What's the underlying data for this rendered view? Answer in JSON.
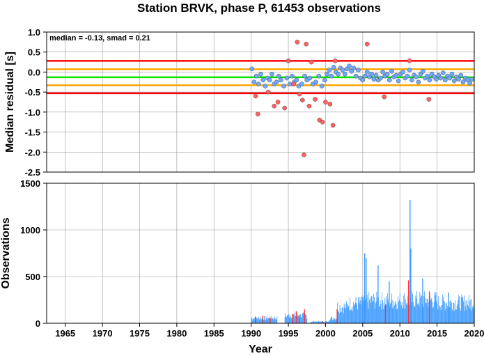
{
  "chart_data": [
    {
      "type": "scatter",
      "title": "Station BRVK, phase P, 61453 observations",
      "annotation": "median = -0.13, smad = 0.21",
      "xlabel": "",
      "ylabel": "Median residual [s]",
      "xlim": [
        1962.5,
        2020
      ],
      "ylim": [
        -2.5,
        1.0
      ],
      "y_ticks": [
        "1.0",
        "0.5",
        "0.0",
        "-0.5",
        "-1.0",
        "-1.5",
        "-2.0",
        "-2.5"
      ],
      "y_tick_values": [
        1.0,
        0.5,
        0.0,
        -0.5,
        -1.0,
        -1.5,
        -2.0,
        -2.5
      ],
      "grid": true,
      "reference_lines": [
        {
          "value": 0.28,
          "color": "#ff0000"
        },
        {
          "value": 0.07,
          "color": "#ffa500"
        },
        {
          "value": -0.13,
          "color": "#00e000"
        },
        {
          "value": -0.33,
          "color": "#ffa500"
        },
        {
          "value": -0.53,
          "color": "#ff0000"
        }
      ],
      "series": [
        {
          "color": "#6fa8ff",
          "x": [
            1990.1,
            1990.4,
            1990.7,
            1991.0,
            1991.3,
            1991.6,
            1991.9,
            1992.2,
            1992.5,
            1992.8,
            1993.1,
            1993.4,
            1993.7,
            1994.0,
            1994.4,
            1994.8,
            1995.2,
            1995.5,
            1995.8,
            1996.1,
            1996.4,
            1996.8,
            1997.2,
            1997.5,
            1997.9,
            1998.3,
            1998.7,
            1999.1,
            1999.5,
            1999.9,
            2000.2,
            2000.5,
            2000.8,
            2001.1,
            2001.4,
            2001.7,
            2002.0,
            2002.3,
            2002.6,
            2002.9,
            2003.2,
            2003.5,
            2003.8,
            2004.1,
            2004.4,
            2004.7,
            2005.0,
            2005.3,
            2005.6,
            2005.9,
            2006.2,
            2006.5,
            2006.8,
            2007.1,
            2007.4,
            2007.7,
            2008.0,
            2008.3,
            2008.6,
            2008.9,
            2009.2,
            2009.5,
            2009.8,
            2010.1,
            2010.4,
            2010.7,
            2011.0,
            2011.3,
            2011.6,
            2011.9,
            2012.2,
            2012.5,
            2012.8,
            2013.1,
            2013.4,
            2013.7,
            2014.0,
            2014.3,
            2014.6,
            2014.9,
            2015.2,
            2015.5,
            2015.8,
            2016.1,
            2016.4,
            2016.7,
            2017.0,
            2017.3,
            2017.6,
            2017.9,
            2018.2,
            2018.5,
            2018.8,
            2019.1,
            2019.4,
            2019.7
          ],
          "values": [
            0.08,
            -0.25,
            -0.1,
            -0.3,
            -0.05,
            -0.2,
            -0.35,
            -0.15,
            -0.2,
            -0.05,
            -0.3,
            -0.25,
            -0.1,
            -0.2,
            -0.35,
            -0.15,
            -0.3,
            -0.1,
            -0.25,
            -0.2,
            -0.35,
            -0.3,
            -0.1,
            -0.2,
            -0.15,
            -0.3,
            -0.25,
            -0.1,
            -0.35,
            -0.2,
            -0.05,
            0.05,
            -0.1,
            0.12,
            0.0,
            -0.05,
            0.1,
            0.05,
            -0.05,
            0.08,
            0.15,
            0.02,
            0.1,
            -0.1,
            0.05,
            -0.15,
            -0.2,
            -0.1,
            0.0,
            -0.12,
            -0.05,
            -0.18,
            -0.08,
            -0.2,
            -0.15,
            0.0,
            -0.1,
            -0.05,
            -0.2,
            0.02,
            -0.12,
            -0.08,
            -0.22,
            -0.05,
            0.0,
            -0.15,
            -0.1,
            0.05,
            -0.2,
            -0.08,
            -0.12,
            -0.25,
            -0.05,
            0.02,
            -0.15,
            -0.1,
            -0.2,
            -0.05,
            -0.12,
            -0.18,
            -0.08,
            -0.15,
            -0.02,
            -0.2,
            -0.1,
            -0.15,
            -0.05,
            -0.22,
            -0.12,
            -0.18,
            -0.08,
            -0.25,
            -0.15,
            -0.2,
            -0.28,
            -0.18
          ]
        },
        {
          "color": "#ff6060",
          "x": [
            1990.6,
            1990.9,
            1992.3,
            1993.1,
            1993.6,
            1994.5,
            1995.0,
            1995.7,
            1996.2,
            1996.5,
            1996.9,
            1997.1,
            1997.4,
            1997.8,
            1998.1,
            1998.6,
            1999.2,
            1999.6,
            2000.0,
            2000.6,
            2001.0,
            2001.3,
            2005.6,
            2007.9,
            2011.3,
            2013.9
          ],
          "values": [
            -0.6,
            -1.05,
            -0.5,
            -0.85,
            -0.75,
            -0.9,
            0.28,
            -0.3,
            0.75,
            -0.55,
            -0.7,
            -2.07,
            0.7,
            -0.85,
            0.25,
            -0.68,
            -1.2,
            -1.25,
            -0.75,
            -0.8,
            -1.33,
            0.28,
            0.7,
            -0.62,
            0.28,
            -0.68
          ]
        }
      ]
    },
    {
      "type": "bar",
      "title": "",
      "xlabel": "Year",
      "ylabel": "Observations",
      "xlim": [
        1962.5,
        2020
      ],
      "ylim": [
        0,
        1500
      ],
      "y_ticks": [
        "1500",
        "1000",
        "500",
        "0"
      ],
      "y_tick_values": [
        1500,
        1000,
        500,
        0
      ],
      "x_ticks": [
        "1965",
        "1970",
        "1975",
        "1980",
        "1985",
        "1990",
        "1995",
        "2000",
        "2005",
        "2010",
        "2015",
        "2020"
      ],
      "x_tick_values": [
        1965,
        1970,
        1975,
        1980,
        1985,
        1990,
        1995,
        2000,
        2005,
        2010,
        2015,
        2020
      ],
      "grid": true,
      "series": [
        {
          "color": "#3f9cff",
          "segments": [
            {
              "from": 1990.0,
              "to": 1993.5,
              "level": 60
            },
            {
              "from": 1994.5,
              "to": 1997.5,
              "level": 90
            },
            {
              "from": 1998.0,
              "to": 2000.5,
              "level": 20
            },
            {
              "from": 2000.5,
              "to": 2001.5,
              "level": 60
            },
            {
              "from": 2001.5,
              "to": 2003.0,
              "level": 190
            },
            {
              "from": 2003.0,
              "to": 2005.0,
              "level": 230
            },
            {
              "from": 2005.0,
              "to": 2010.0,
              "level": 260
            },
            {
              "from": 2010.0,
              "to": 2015.0,
              "level": 270
            },
            {
              "from": 2015.0,
              "to": 2020.0,
              "level": 240
            }
          ],
          "spikes_x": [
            2005.2,
            2005.4,
            2007.0,
            2008.5,
            2011.3,
            2011.4,
            2013.0,
            2016.5
          ],
          "spikes_values": [
            750,
            700,
            620,
            450,
            1320,
            800,
            480,
            330
          ]
        },
        {
          "color": "#ff3030",
          "spikes_x": [
            1990.5,
            1991.5,
            1992.5,
            1995.5,
            1996.0,
            1996.4,
            1997.1,
            1999.5,
            2001.5,
            2011.1,
            2013.9,
            2008.0
          ],
          "spikes_values": [
            70,
            80,
            60,
            100,
            130,
            90,
            150,
            20,
            150,
            460,
            340,
            200
          ]
        }
      ]
    }
  ]
}
